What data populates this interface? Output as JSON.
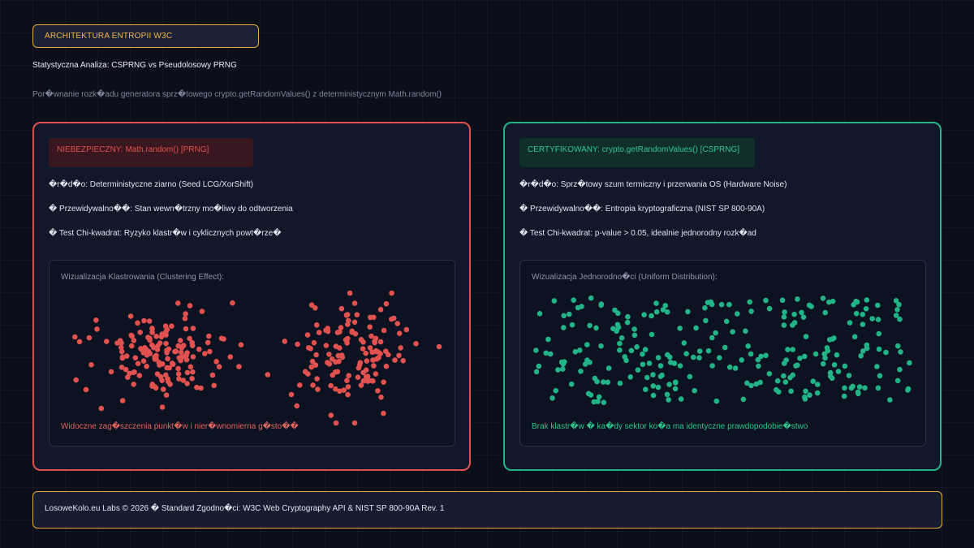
{
  "header": {
    "badge": "ARCHITEKTURA ENTROPII W3C",
    "title": "Statystyczna Analiza: CSPRNG vs Pseudolosowy PRNG",
    "subtitle": "Por�wnanie rozk�adu generatora sprz�towego crypto.getRandomValues() z deterministycznym Math.random()"
  },
  "panels": {
    "insecure": {
      "tag": "NIEBEZPIECZNY: Math.random() [PRNG]",
      "accent": "#e0514f",
      "lines": [
        "�r�d�o: Deterministyczne ziarno (Seed LCG/XorShift)",
        "� Przewidywalno��: Stan wewn�trzny mo�liwy do odtworzenia",
        "� Test Chi-kwadrat: Ryzyko klastr�w i cyklicznych powt�rze�"
      ],
      "viz_title": "Wizualizacja Klastrowania (Clustering Effect):",
      "viz_note": "Widoczne zag�szczenia punkt�w i nier�wnomierna g�sto��"
    },
    "secure": {
      "tag": "CERTYFIKOWANY: crypto.getRandomValues() [CSPRNG]",
      "accent": "#22b487",
      "lines": [
        "�r�d�o: Sprz�towy szum termiczny i przerwania OS (Hardware Noise)",
        "� Przewidywalno��: Entropia kryptograficzna (NIST SP 800-90A)",
        "� Test Chi-kwadrat: p-value > 0.05, idealnie jednorodny rozk�ad"
      ],
      "viz_title": "Wizualizacja Jednorodno�ci (Uniform Distribution):",
      "viz_note": "Brak klastr�w � ka�dy sektor ko�a ma identyczne prawdopodobie�stwo"
    }
  },
  "footer": {
    "text": "LosoweKolo.eu Labs © 2026 � Standard Zgodno�ci: W3C Web Cryptography API & NIST SP 800-90A Rev. 1"
  }
}
